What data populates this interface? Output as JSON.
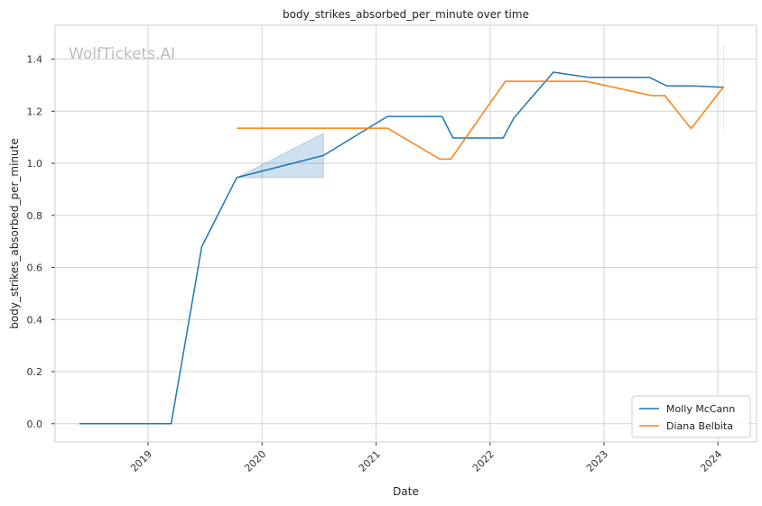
{
  "chart_data": {
    "type": "line",
    "title": "body_strikes_absorbed_per_minute over time",
    "xlabel": "Date",
    "ylabel": "body_strikes_absorbed_per_minute",
    "watermark": "WolfTickets.AI",
    "xlim": [
      "2018-03-09",
      "2024-05-04"
    ],
    "ylim": [
      -0.07,
      1.53
    ],
    "x_ticks": [
      {
        "date": "2019-01-01",
        "label": "2019"
      },
      {
        "date": "2020-01-01",
        "label": "2020"
      },
      {
        "date": "2021-01-01",
        "label": "2021"
      },
      {
        "date": "2022-01-01",
        "label": "2022"
      },
      {
        "date": "2023-01-01",
        "label": "2023"
      },
      {
        "date": "2024-01-01",
        "label": "2024"
      }
    ],
    "y_ticks": [
      {
        "value": 0.0,
        "label": "0.0"
      },
      {
        "value": 0.2,
        "label": "0.2"
      },
      {
        "value": 0.4,
        "label": "0.4"
      },
      {
        "value": 0.6,
        "label": "0.6"
      },
      {
        "value": 0.8,
        "label": "0.8"
      },
      {
        "value": 1.0,
        "label": "1.0"
      },
      {
        "value": 1.2,
        "label": "1.2"
      },
      {
        "value": 1.4,
        "label": "1.4"
      }
    ],
    "grid": true,
    "legend_position": "bottom-right",
    "series": [
      {
        "name": "Molly McCann",
        "color": "#1f77b4",
        "points": [
          {
            "x": "2018-05-26",
            "y": 0.0
          },
          {
            "x": "2019-03-16",
            "y": 0.0
          },
          {
            "x": "2019-06-22",
            "y": 0.68
          },
          {
            "x": "2019-10-12",
            "y": 0.945
          },
          {
            "x": "2020-07-16",
            "y": 1.03
          },
          {
            "x": "2021-02-06",
            "y": 1.18
          },
          {
            "x": "2021-07-31",
            "y": 1.18
          },
          {
            "x": "2021-09-04",
            "y": 1.097
          },
          {
            "x": "2022-02-12",
            "y": 1.097
          },
          {
            "x": "2022-03-19",
            "y": 1.175
          },
          {
            "x": "2022-07-23",
            "y": 1.35
          },
          {
            "x": "2022-11-12",
            "y": 1.33
          },
          {
            "x": "2023-05-27",
            "y": 1.33
          },
          {
            "x": "2023-07-22",
            "y": 1.297
          },
          {
            "x": "2023-10-14",
            "y": 1.297
          },
          {
            "x": "2024-01-20",
            "y": 1.292
          }
        ],
        "band": {
          "x": [
            "2019-10-12",
            "2020-07-16"
          ],
          "lower": [
            0.945,
            0.945
          ],
          "upper": [
            0.945,
            1.115
          ]
        }
      },
      {
        "name": "Diana Belbita",
        "color": "#ff7f0e",
        "points": [
          {
            "x": "2019-10-12",
            "y": 1.135
          },
          {
            "x": "2021-02-06",
            "y": 1.135
          },
          {
            "x": "2021-07-24",
            "y": 1.016
          },
          {
            "x": "2021-08-28",
            "y": 1.016
          },
          {
            "x": "2022-02-19",
            "y": 1.315
          },
          {
            "x": "2022-11-05",
            "y": 1.315
          },
          {
            "x": "2023-06-03",
            "y": 1.26
          },
          {
            "x": "2023-07-15",
            "y": 1.26
          },
          {
            "x": "2023-10-07",
            "y": 1.133
          },
          {
            "x": "2024-01-20",
            "y": 1.295
          }
        ],
        "band": {
          "x": [
            "2024-01-20"
          ],
          "lower": [
            1.13
          ],
          "upper": [
            1.455
          ]
        }
      }
    ]
  }
}
